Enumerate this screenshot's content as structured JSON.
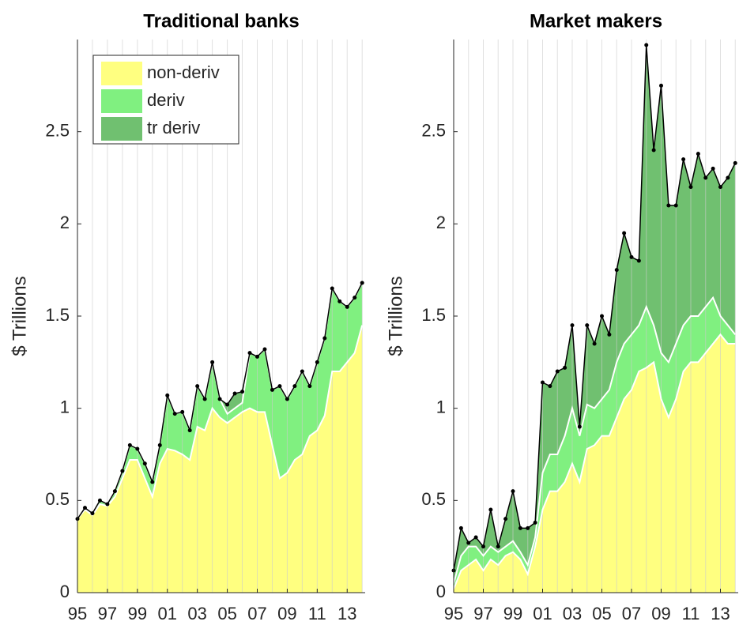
{
  "chart_data": [
    {
      "type": "stacked-area",
      "title": "Traditional banks",
      "ylabel": "$ Trillions",
      "x": [
        1995,
        1995.5,
        1996,
        1996.5,
        1997,
        1997.5,
        1998,
        1998.5,
        1999,
        1999.5,
        2000,
        2000.5,
        2001,
        2001.5,
        2002,
        2002.5,
        2003,
        2003.5,
        2004,
        2004.5,
        2005,
        2005.5,
        2006,
        2006.5,
        2007,
        2007.5,
        2008,
        2008.5,
        2009,
        2009.5,
        2010,
        2010.5,
        2011,
        2011.5,
        2012,
        2012.5,
        2013,
        2013.5,
        2014
      ],
      "series": [
        {
          "name": "non-deriv",
          "color": "#ffff80",
          "values": [
            0.4,
            0.45,
            0.42,
            0.48,
            0.47,
            0.52,
            0.62,
            0.72,
            0.72,
            0.62,
            0.52,
            0.7,
            0.78,
            0.77,
            0.75,
            0.72,
            0.9,
            0.88,
            1.0,
            0.95,
            0.92,
            0.95,
            0.98,
            1.0,
            0.98,
            0.98,
            0.8,
            0.62,
            0.65,
            0.72,
            0.75,
            0.85,
            0.88,
            0.96,
            1.2,
            1.2,
            1.25,
            1.3,
            1.45
          ]
        },
        {
          "name": "deriv",
          "color": "#80f080",
          "values": [
            0.0,
            0.01,
            0.01,
            0.02,
            0.01,
            0.03,
            0.04,
            0.08,
            0.06,
            0.08,
            0.08,
            0.1,
            0.29,
            0.2,
            0.23,
            0.16,
            0.22,
            0.17,
            0.25,
            0.1,
            0.05,
            0.05,
            0.05,
            0.3,
            0.3,
            0.34,
            0.3,
            0.5,
            0.4,
            0.4,
            0.45,
            0.27,
            0.37,
            0.42,
            0.45,
            0.38,
            0.3,
            0.3,
            0.23
          ]
        },
        {
          "name": "tr deriv",
          "color": "#70c070",
          "values": [
            0,
            0,
            0,
            0,
            0,
            0,
            0,
            0,
            0,
            0,
            0,
            0,
            0,
            0,
            0,
            0,
            0,
            0,
            0,
            0,
            0.05,
            0.08,
            0.06,
            0,
            0,
            0,
            0,
            0,
            0,
            0,
            0,
            0,
            0,
            0,
            0,
            0,
            0,
            0,
            0
          ]
        }
      ],
      "xlim": [
        1995,
        2014.2
      ],
      "xticks": [
        {
          "value": 1995,
          "label": "95"
        },
        {
          "value": 1997,
          "label": "97"
        },
        {
          "value": 1999,
          "label": "99"
        },
        {
          "value": 2001,
          "label": "01"
        },
        {
          "value": 2003,
          "label": "03"
        },
        {
          "value": 2005,
          "label": "05"
        },
        {
          "value": 2007,
          "label": "07"
        },
        {
          "value": 2009,
          "label": "09"
        },
        {
          "value": 2011,
          "label": "11"
        },
        {
          "value": 2013,
          "label": "13"
        }
      ],
      "x_minor_grid": [
        1996,
        1998,
        2000,
        2002,
        2004,
        2006,
        2008,
        2010,
        2012,
        2014
      ],
      "ylim": [
        0,
        3
      ],
      "yticks": [
        0,
        0.5,
        1,
        1.5,
        2,
        2.5
      ],
      "grid": "x",
      "legend": "upper left"
    },
    {
      "type": "stacked-area",
      "title": "Market makers",
      "ylabel": "$ Trillions",
      "x": [
        1995,
        1995.5,
        1996,
        1996.5,
        1997,
        1997.5,
        1998,
        1998.5,
        1999,
        1999.5,
        2000,
        2000.5,
        2001,
        2001.5,
        2002,
        2002.5,
        2003,
        2003.5,
        2004,
        2004.5,
        2005,
        2005.5,
        2006,
        2006.5,
        2007,
        2007.5,
        2008,
        2008.5,
        2009,
        2009.5,
        2010,
        2010.5,
        2011,
        2011.5,
        2012,
        2012.5,
        2013,
        2013.5,
        2014
      ],
      "series": [
        {
          "color": "#ffff80",
          "values": [
            0.02,
            0.12,
            0.15,
            0.18,
            0.12,
            0.18,
            0.15,
            0.2,
            0.22,
            0.18,
            0.1,
            0.25,
            0.45,
            0.55,
            0.55,
            0.6,
            0.7,
            0.6,
            0.78,
            0.8,
            0.85,
            0.85,
            0.95,
            1.05,
            1.1,
            1.2,
            1.22,
            1.25,
            1.05,
            0.95,
            1.05,
            1.2,
            1.25,
            1.25,
            1.3,
            1.35,
            1.4,
            1.35,
            1.35
          ]
        },
        {
          "color": "#80f080",
          "values": [
            0.03,
            0.08,
            0.1,
            0.07,
            0.08,
            0.07,
            0.07,
            0.05,
            0.06,
            0.04,
            0.05,
            0.05,
            0.2,
            0.2,
            0.2,
            0.25,
            0.3,
            0.25,
            0.24,
            0.2,
            0.2,
            0.25,
            0.3,
            0.3,
            0.3,
            0.25,
            0.33,
            0.2,
            0.25,
            0.3,
            0.3,
            0.25,
            0.25,
            0.25,
            0.25,
            0.25,
            0.1,
            0.1,
            0.05
          ]
        },
        {
          "color": "#70c070",
          "values": [
            0.07,
            0.15,
            0.02,
            0.05,
            0.05,
            0.2,
            0.03,
            0.15,
            0.27,
            0.13,
            0.2,
            0.08,
            0.49,
            0.37,
            0.45,
            0.37,
            0.45,
            0.05,
            0.43,
            0.35,
            0.45,
            0.3,
            0.5,
            0.6,
            0.42,
            0.35,
            1.42,
            0.95,
            1.45,
            0.85,
            0.75,
            0.9,
            0.7,
            0.88,
            0.7,
            0.7,
            0.7,
            0.8,
            0.93
          ]
        }
      ],
      "xlim": [
        1995,
        2014.2
      ],
      "xticks": [
        {
          "value": 1995,
          "label": "95"
        },
        {
          "value": 1997,
          "label": "97"
        },
        {
          "value": 1999,
          "label": "99"
        },
        {
          "value": 2001,
          "label": "01"
        },
        {
          "value": 2003,
          "label": "03"
        },
        {
          "value": 2005,
          "label": "05"
        },
        {
          "value": 2007,
          "label": "07"
        },
        {
          "value": 2009,
          "label": "09"
        },
        {
          "value": 2011,
          "label": "11"
        },
        {
          "value": 2013,
          "label": "13"
        }
      ],
      "x_minor_grid": [
        1996,
        1998,
        2000,
        2002,
        2004,
        2006,
        2008,
        2010,
        2012,
        2014
      ],
      "ylim": [
        0,
        3
      ],
      "yticks": [
        0,
        0.5,
        1,
        1.5,
        2,
        2.5
      ],
      "grid": "x"
    }
  ]
}
